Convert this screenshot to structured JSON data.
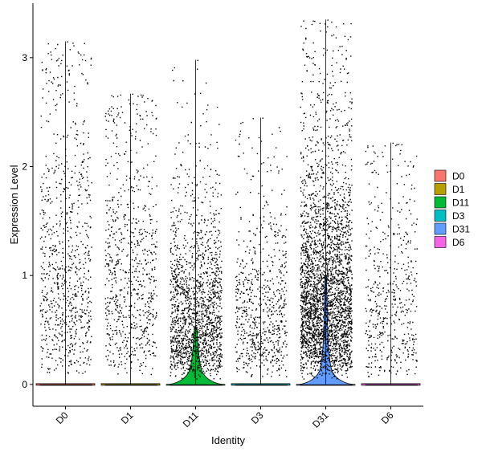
{
  "chart_data": {
    "type": "violin",
    "xlabel": "Identity",
    "ylabel": "Expression Level",
    "categories": [
      "D0",
      "D1",
      "D11",
      "D3",
      "D31",
      "D6"
    ],
    "colors": [
      "#F8766D",
      "#B79F00",
      "#00BA38",
      "#00BFC4",
      "#619CFF",
      "#F564E3"
    ],
    "ylim": [
      -0.2,
      3.5
    ],
    "yticks": [
      0,
      1,
      2,
      3
    ],
    "legend": {
      "position": "right",
      "entries": [
        "D0",
        "D1",
        "D11",
        "D3",
        "D31",
        "D6"
      ]
    },
    "grid": false,
    "series": [
      {
        "name": "D0",
        "max": 3.15,
        "n_points": 1500,
        "zero_fraction": 0.45,
        "mean_nonzero": 1.2,
        "violin_zero_peak": 0.0
      },
      {
        "name": "D1",
        "max": 2.67,
        "n_points": 1400,
        "zero_fraction": 0.45,
        "mean_nonzero": 1.1,
        "violin_zero_peak": 0.0
      },
      {
        "name": "D11",
        "max": 2.98,
        "n_points": 2800,
        "zero_fraction": 0.4,
        "mean_nonzero": 0.7,
        "violin_zero_peak": 0.14
      },
      {
        "name": "D3",
        "max": 2.45,
        "n_points": 1300,
        "zero_fraction": 0.45,
        "mean_nonzero": 0.75,
        "violin_zero_peak": 0.0
      },
      {
        "name": "D31",
        "max": 3.35,
        "n_points": 4800,
        "zero_fraction": 0.35,
        "mean_nonzero": 0.95,
        "violin_zero_peak": 0.28
      },
      {
        "name": "D6",
        "max": 2.22,
        "n_points": 900,
        "zero_fraction": 0.45,
        "mean_nonzero": 0.85,
        "violin_zero_peak": 0.0
      }
    ]
  }
}
